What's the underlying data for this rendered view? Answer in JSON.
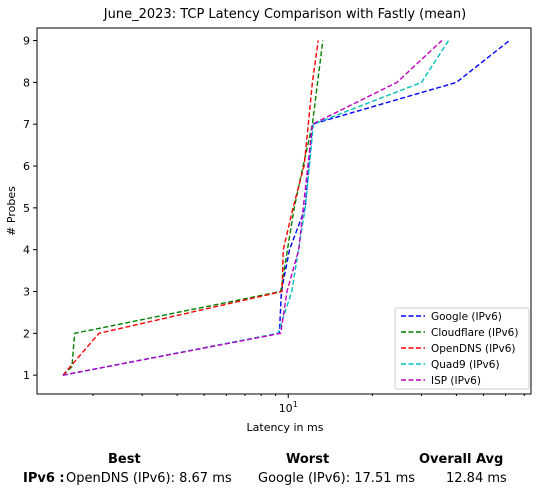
{
  "chart_data": {
    "type": "line",
    "title": "June_2023: TCP Latency Comparison with Fastly (mean)",
    "xlabel": "Latency in ms",
    "ylabel": "# Probes",
    "xscale": "log",
    "xlim": [
      1.26,
      74
    ],
    "ylim": [
      0.55,
      9.3
    ],
    "x_tick_labels": [
      {
        "value": 10,
        "label": "10^1"
      }
    ],
    "y_ticks": [
      1,
      2,
      3,
      4,
      5,
      6,
      7,
      8,
      9
    ],
    "grid": false,
    "legend": "lower-right",
    "series": [
      {
        "name": "Google (IPv6)",
        "color": "#0000ff",
        "style": "dashed",
        "x": [
          1.56,
          9.3,
          9.45,
          10.1,
          11.5,
          12.2,
          40,
          62
        ],
        "y": [
          1,
          2,
          3,
          4,
          5,
          7,
          8,
          9
        ]
      },
      {
        "name": "Cloudflare (IPv6)",
        "color": "#008000",
        "style": "dashed",
        "x": [
          1.56,
          1.68,
          1.72,
          9.4,
          10.5,
          11.3,
          12.2,
          13.3
        ],
        "y": [
          1,
          1.2,
          2,
          3,
          5,
          6,
          7,
          9
        ]
      },
      {
        "name": "OpenDNS (IPv6)",
        "color": "#ff0000",
        "style": "dashed",
        "x": [
          1.56,
          2.1,
          9.5,
          9.6,
          10.4,
          11.4,
          11.8,
          12.2,
          12.8
        ],
        "y": [
          1,
          2,
          3,
          4,
          5,
          6,
          7,
          8,
          9
        ]
      },
      {
        "name": "Quad9 (IPv6)",
        "color": "#00bfbf",
        "style": "dashed",
        "x": [
          1.56,
          9.2,
          10.3,
          11.5,
          12.3,
          30,
          37.5
        ],
        "y": [
          1,
          2,
          3,
          5,
          7,
          8,
          9
        ]
      },
      {
        "name": "ISP (IPv6)",
        "color": "#bf00bf",
        "style": "dashed",
        "x": [
          1.56,
          9.4,
          9.9,
          10.9,
          12.2,
          24.5,
          35.5
        ],
        "y": [
          1,
          2,
          3,
          4,
          7,
          8,
          9
        ]
      }
    ]
  },
  "summary": {
    "best_header": "Best",
    "worst_header": "Worst",
    "avg_header": "Overall Avg",
    "row_label": "IPv6 :",
    "best_value": "OpenDNS (IPv6): 8.67 ms",
    "worst_value": "Google (IPv6): 17.51 ms",
    "avg_value": "12.84 ms"
  }
}
